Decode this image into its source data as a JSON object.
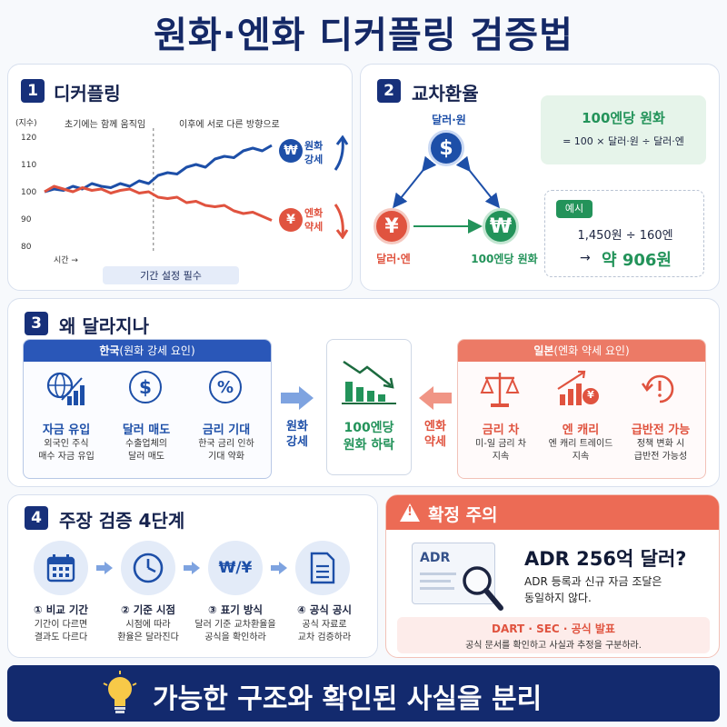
{
  "title": "원화·엔화 디커플링 검증법",
  "panel1": {
    "number": "1",
    "heading": "디커플링",
    "y_unit": "(지수)",
    "y_ticks": [
      "120",
      "110",
      "100",
      "90",
      "80"
    ],
    "x_label": "시간 →",
    "annot_left": "초기에는 함께 움직임",
    "annot_right": "이후에 서로 다른 방향으로",
    "won_label_1": "원화",
    "won_label_2": "강세",
    "yen_label_1": "엔화",
    "yen_label_2": "약세",
    "note": "기간 설정 필수",
    "won_symbol": "₩",
    "yen_symbol": "¥"
  },
  "panel2": {
    "number": "2",
    "heading": "교차환율",
    "node_top": "달러·원",
    "node_left": "달러·엔",
    "node_right": "100엔당 원화",
    "formula_title": "100엔당 원화",
    "formula": "= 100 × 달러·원 ÷ 달러·엔",
    "example_tag": "예시",
    "example_line": "1,450원 ÷ 160엔",
    "example_result_prefix": "→",
    "example_result": "약 906원",
    "dollar_symbol": "$",
    "won_symbol": "₩",
    "yen_symbol": "¥"
  },
  "panel3": {
    "number": "3",
    "heading": "왜 달라지나",
    "korea_header_main": "한국",
    "korea_header_sub": "(원화 강세 요인)",
    "korea_factors": [
      {
        "title": "자금 유입",
        "desc1": "외국인 주식",
        "desc2": "매수 자금 유입"
      },
      {
        "title": "달러 매도",
        "desc1": "수출업체의",
        "desc2": "달러 매도"
      },
      {
        "title": "금리 기대",
        "desc1": "한국 금리 인하",
        "desc2": "기대 약화"
      }
    ],
    "arrow_left_1": "원화",
    "arrow_left_2": "강세",
    "center_1": "100엔당",
    "center_2": "원화 하락",
    "arrow_right_1": "엔화",
    "arrow_right_2": "약세",
    "japan_header_main": "일본",
    "japan_header_sub": "(엔화 약세 요인)",
    "japan_factors": [
      {
        "title": "금리 차",
        "desc1": "미-일 금리 차",
        "desc2": "지속"
      },
      {
        "title": "엔 캐리",
        "desc1": "엔 캐리 트레이드",
        "desc2": "지속"
      },
      {
        "title": "급반전 가능",
        "desc1": "정책 변화 시",
        "desc2": "급반전 가능성"
      }
    ],
    "percent_symbol": "%",
    "dollar_symbol": "$",
    "yen_symbol": "¥"
  },
  "panel4": {
    "number": "4",
    "heading": "주장 검증 4단계",
    "steps": [
      {
        "title": "① 비교 기간",
        "desc1": "기간이 다르면",
        "desc2": "결과도 다르다"
      },
      {
        "title": "② 기준 시점",
        "desc1": "시점에 따라",
        "desc2": "환율은 달라진다"
      },
      {
        "title": "③ 표기 방식",
        "desc1": "달러 기준 교차환율을",
        "desc2": "공식을 확인하라"
      },
      {
        "title": "④ 공식 공시",
        "desc1": "공식 자료로",
        "desc2": "교차 검증하라"
      }
    ],
    "won_yen_symbol": "₩/¥"
  },
  "panel5": {
    "heading": "확정 주의",
    "warn_symbol": "!",
    "doc_label": "ADR",
    "headline": "ADR 256억 달러?",
    "desc1": "ADR 등록과 신규 자금 조달은",
    "desc2": "동일하지 않다.",
    "sources": "DART · SEC · 공식 발표",
    "sources_desc": "공식 문서를 확인하고 사실과 추정을 구분하라."
  },
  "banner": "가능한 구조와 확인된 사실을 분리",
  "chart_data": {
    "type": "line",
    "x": [
      0,
      1,
      2,
      3,
      4,
      5,
      6,
      7,
      8,
      9,
      10,
      11,
      12,
      13,
      14,
      15,
      16,
      17,
      18,
      19,
      20,
      21,
      22,
      23,
      24
    ],
    "series": [
      {
        "values": [
          100,
          101,
          100.5,
          102,
          101,
          103,
          102,
          101.5,
          103,
          102,
          104,
          103,
          106,
          107,
          106.5,
          109,
          110,
          109,
          112,
          113,
          112.5,
          115,
          116,
          115,
          117
        ]
      },
      {
        "values": [
          100,
          102,
          101,
          100,
          101.5,
          100.5,
          101,
          99.5,
          100.5,
          101,
          99.5,
          100,
          98,
          97.5,
          98,
          96,
          96.5,
          95,
          94.5,
          95,
          93,
          92,
          92.5,
          91,
          89.5
        ]
      }
    ],
    "ylim": [
      80,
      120
    ],
    "divider_x": 11.5,
    "colors": [
      "#1d4fa8",
      "#e0533f"
    ]
  }
}
